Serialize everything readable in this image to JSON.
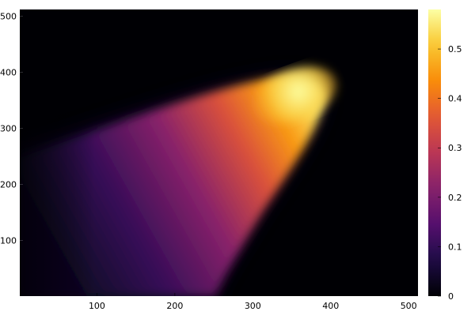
{
  "chart_data": {
    "type": "heatmap",
    "title": "",
    "xlabel": "",
    "ylabel": "",
    "xlim": [
      1,
      512
    ],
    "ylim": [
      1,
      512
    ],
    "x_ticks": [
      100,
      200,
      300,
      400,
      500
    ],
    "y_ticks": [
      100,
      200,
      300,
      400,
      500
    ],
    "colorbar": {
      "colormap": "inferno",
      "range": [
        0,
        0.58
      ],
      "ticks": [
        0,
        0.1,
        0.2,
        0.3,
        0.4,
        0.5
      ]
    },
    "field": {
      "description_points": [
        {
          "x": 375,
          "y": 370,
          "value": 0.58
        },
        {
          "x": 300,
          "y": 290,
          "value": 0.43
        },
        {
          "x": 200,
          "y": 200,
          "value": 0.25
        },
        {
          "x": 100,
          "y": 120,
          "value": 0.1
        },
        {
          "x": 30,
          "y": 50,
          "value": 0.03
        }
      ]
    },
    "grid": false,
    "legend": "colorbar-right"
  }
}
